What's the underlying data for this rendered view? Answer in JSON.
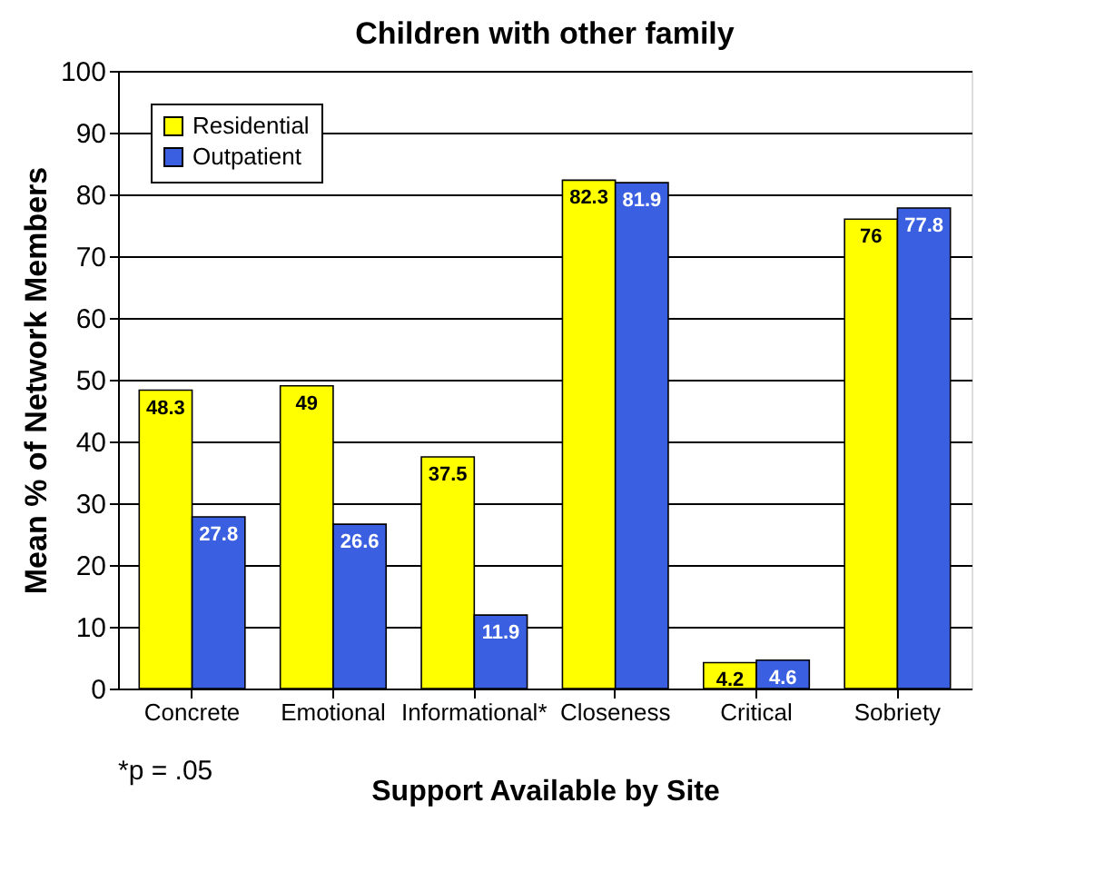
{
  "chart_data": {
    "type": "bar",
    "title": "Children with other family",
    "xlabel": "Support Available by Site",
    "ylabel": "Mean % of Network Members",
    "categories": [
      "Concrete",
      "Emotional",
      "Informational*",
      "Closeness",
      "Critical",
      "Sobriety"
    ],
    "series": [
      {
        "name": "Residential",
        "color": "#ffff00",
        "values": [
          48.3,
          49,
          37.5,
          82.3,
          4.2,
          76
        ]
      },
      {
        "name": "Outpatient",
        "color": "#3a5fe0",
        "values": [
          27.8,
          26.6,
          11.9,
          81.9,
          4.6,
          77.8
        ]
      }
    ],
    "ylim": [
      0,
      100
    ],
    "yticks": [
      0,
      10,
      20,
      30,
      40,
      50,
      60,
      70,
      80,
      90,
      100
    ],
    "grid": "y",
    "legend": "top left",
    "data_labels": true,
    "annotations": [
      "*p = .05"
    ]
  }
}
